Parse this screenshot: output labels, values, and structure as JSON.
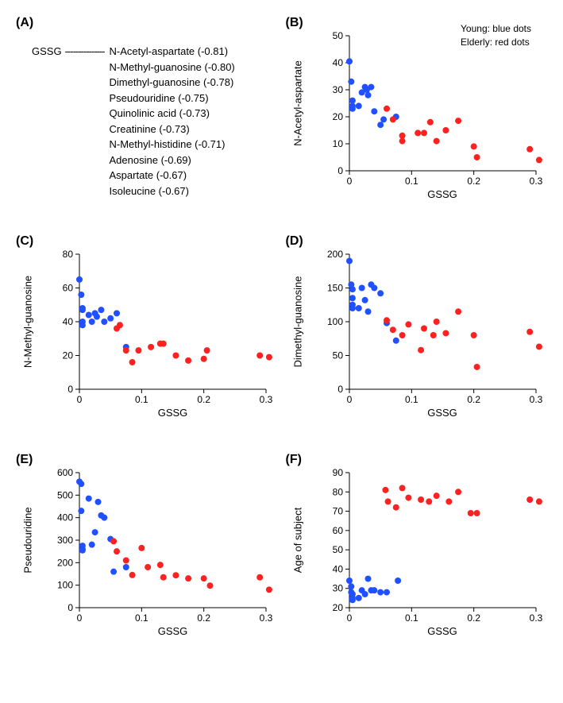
{
  "colors": {
    "young": "#2050ff",
    "elderly": "#ff2020",
    "axis": "#000000",
    "bg": "#ffffff"
  },
  "marker_radius": 4,
  "font": {
    "tick_size": 12,
    "label_size": 13,
    "panel_label_size": 16
  },
  "panelA": {
    "label": "(A)",
    "root": "GSSG",
    "dash": "---------------",
    "items": [
      "N-Acetyl-aspartate (-0.81)",
      "N-Methyl-guanosine (-0.80)",
      "Dimethyl-guanosine (-0.78)",
      "Pseudouridine (-0.75)",
      "Quinolinic acid (-0.73)",
      "Creatinine (-0.73)",
      "N-Methyl-histidine (-0.71)",
      "Adenosine (-0.69)",
      "Aspartate (-0.67)",
      "Isoleucine (-0.67)"
    ]
  },
  "legend": {
    "young": "Young:  blue dots",
    "elderly": "Elderly: red dots"
  },
  "plots": {
    "B": {
      "label": "(B)",
      "xlabel": "GSSG",
      "ylabel": "N-Acetyl-aspartate",
      "xlim": [
        0,
        0.3
      ],
      "xticks": [
        0,
        0.1,
        0.2,
        0.3
      ],
      "ylim": [
        0,
        50
      ],
      "yticks": [
        0,
        10,
        20,
        30,
        40,
        50
      ],
      "young": [
        [
          0.0,
          40.5
        ],
        [
          0.003,
          33
        ],
        [
          0.005,
          26
        ],
        [
          0.005,
          24
        ],
        [
          0.005,
          23
        ],
        [
          0.015,
          24
        ],
        [
          0.02,
          29
        ],
        [
          0.025,
          31
        ],
        [
          0.028,
          30
        ],
        [
          0.03,
          28
        ],
        [
          0.035,
          31
        ],
        [
          0.04,
          22
        ],
        [
          0.05,
          17
        ],
        [
          0.055,
          19
        ],
        [
          0.075,
          20
        ]
      ],
      "elderly": [
        [
          0.06,
          23
        ],
        [
          0.07,
          19
        ],
        [
          0.085,
          13
        ],
        [
          0.085,
          11
        ],
        [
          0.11,
          14
        ],
        [
          0.12,
          14
        ],
        [
          0.13,
          18
        ],
        [
          0.14,
          11
        ],
        [
          0.155,
          15
        ],
        [
          0.175,
          18.5
        ],
        [
          0.2,
          9
        ],
        [
          0.205,
          5
        ],
        [
          0.29,
          8
        ],
        [
          0.305,
          4
        ]
      ]
    },
    "C": {
      "label": "(C)",
      "xlabel": "GSSG",
      "ylabel": "N-Methyl-guanosine",
      "xlim": [
        0,
        0.3
      ],
      "xticks": [
        0,
        0.1,
        0.2,
        0.3
      ],
      "ylim": [
        0,
        80
      ],
      "yticks": [
        0,
        20,
        40,
        60,
        80
      ],
      "young": [
        [
          0.0,
          65
        ],
        [
          0.003,
          56
        ],
        [
          0.005,
          48
        ],
        [
          0.005,
          47
        ],
        [
          0.005,
          40
        ],
        [
          0.005,
          38
        ],
        [
          0.015,
          44
        ],
        [
          0.02,
          40
        ],
        [
          0.025,
          45
        ],
        [
          0.028,
          43
        ],
        [
          0.035,
          47
        ],
        [
          0.04,
          40
        ],
        [
          0.05,
          42
        ],
        [
          0.06,
          45
        ],
        [
          0.075,
          25
        ]
      ],
      "elderly": [
        [
          0.06,
          36
        ],
        [
          0.065,
          38
        ],
        [
          0.075,
          23
        ],
        [
          0.085,
          16
        ],
        [
          0.095,
          23
        ],
        [
          0.115,
          25
        ],
        [
          0.13,
          27
        ],
        [
          0.135,
          27
        ],
        [
          0.155,
          20
        ],
        [
          0.175,
          17
        ],
        [
          0.2,
          18
        ],
        [
          0.205,
          23
        ],
        [
          0.29,
          20
        ],
        [
          0.305,
          19
        ]
      ]
    },
    "D": {
      "label": "(D)",
      "xlabel": "GSSG",
      "ylabel": "Dimethyl-guanosine",
      "xlim": [
        0,
        0.3
      ],
      "xticks": [
        0,
        0.1,
        0.2,
        0.3
      ],
      "ylim": [
        0,
        200
      ],
      "yticks": [
        0,
        50,
        100,
        150,
        200
      ],
      "young": [
        [
          0.0,
          190
        ],
        [
          0.003,
          155
        ],
        [
          0.005,
          148
        ],
        [
          0.005,
          135
        ],
        [
          0.005,
          125
        ],
        [
          0.005,
          120
        ],
        [
          0.015,
          120
        ],
        [
          0.02,
          150
        ],
        [
          0.025,
          132
        ],
        [
          0.03,
          115
        ],
        [
          0.035,
          155
        ],
        [
          0.04,
          150
        ],
        [
          0.05,
          142
        ],
        [
          0.06,
          98
        ],
        [
          0.075,
          72
        ]
      ],
      "elderly": [
        [
          0.06,
          102
        ],
        [
          0.07,
          88
        ],
        [
          0.085,
          80
        ],
        [
          0.095,
          96
        ],
        [
          0.115,
          58
        ],
        [
          0.12,
          90
        ],
        [
          0.135,
          80
        ],
        [
          0.14,
          100
        ],
        [
          0.155,
          83
        ],
        [
          0.175,
          115
        ],
        [
          0.2,
          80
        ],
        [
          0.205,
          33
        ],
        [
          0.29,
          85
        ],
        [
          0.305,
          63
        ]
      ]
    },
    "E": {
      "label": "(E)",
      "xlabel": "GSSG",
      "ylabel": "Pseudouridine",
      "xlim": [
        0,
        0.3
      ],
      "xticks": [
        0,
        0.1,
        0.2,
        0.3
      ],
      "ylim": [
        0,
        600
      ],
      "yticks": [
        0,
        100,
        200,
        300,
        400,
        500,
        600
      ],
      "young": [
        [
          0.0,
          560
        ],
        [
          0.003,
          550
        ],
        [
          0.003,
          430
        ],
        [
          0.005,
          275
        ],
        [
          0.005,
          260
        ],
        [
          0.005,
          255
        ],
        [
          0.015,
          485
        ],
        [
          0.02,
          280
        ],
        [
          0.025,
          335
        ],
        [
          0.03,
          470
        ],
        [
          0.035,
          410
        ],
        [
          0.04,
          400
        ],
        [
          0.05,
          305
        ],
        [
          0.055,
          160
        ],
        [
          0.075,
          180
        ]
      ],
      "elderly": [
        [
          0.055,
          295
        ],
        [
          0.06,
          250
        ],
        [
          0.075,
          210
        ],
        [
          0.085,
          145
        ],
        [
          0.1,
          265
        ],
        [
          0.11,
          180
        ],
        [
          0.13,
          190
        ],
        [
          0.135,
          135
        ],
        [
          0.155,
          144
        ],
        [
          0.175,
          130
        ],
        [
          0.2,
          130
        ],
        [
          0.21,
          98
        ],
        [
          0.29,
          135
        ],
        [
          0.305,
          80
        ]
      ]
    },
    "F": {
      "label": "(F)",
      "xlabel": "GSSG",
      "ylabel": "Age of subject",
      "xlim": [
        0,
        0.3
      ],
      "xticks": [
        0,
        0.1,
        0.2,
        0.3
      ],
      "ylim": [
        20,
        90
      ],
      "yticks": [
        20,
        30,
        40,
        50,
        60,
        70,
        80,
        90
      ],
      "young": [
        [
          0.0,
          34
        ],
        [
          0.003,
          31
        ],
        [
          0.003,
          28
        ],
        [
          0.005,
          27
        ],
        [
          0.005,
          25
        ],
        [
          0.005,
          24
        ],
        [
          0.015,
          25
        ],
        [
          0.02,
          29
        ],
        [
          0.025,
          27
        ],
        [
          0.03,
          35
        ],
        [
          0.035,
          29
        ],
        [
          0.04,
          29
        ],
        [
          0.05,
          28
        ],
        [
          0.06,
          28
        ],
        [
          0.078,
          34
        ]
      ],
      "elderly": [
        [
          0.058,
          81
        ],
        [
          0.062,
          75
        ],
        [
          0.075,
          72
        ],
        [
          0.085,
          82
        ],
        [
          0.095,
          77
        ],
        [
          0.115,
          76
        ],
        [
          0.128,
          75
        ],
        [
          0.14,
          78
        ],
        [
          0.16,
          75
        ],
        [
          0.175,
          80
        ],
        [
          0.195,
          69
        ],
        [
          0.205,
          69
        ],
        [
          0.29,
          76
        ],
        [
          0.305,
          75
        ]
      ]
    }
  }
}
